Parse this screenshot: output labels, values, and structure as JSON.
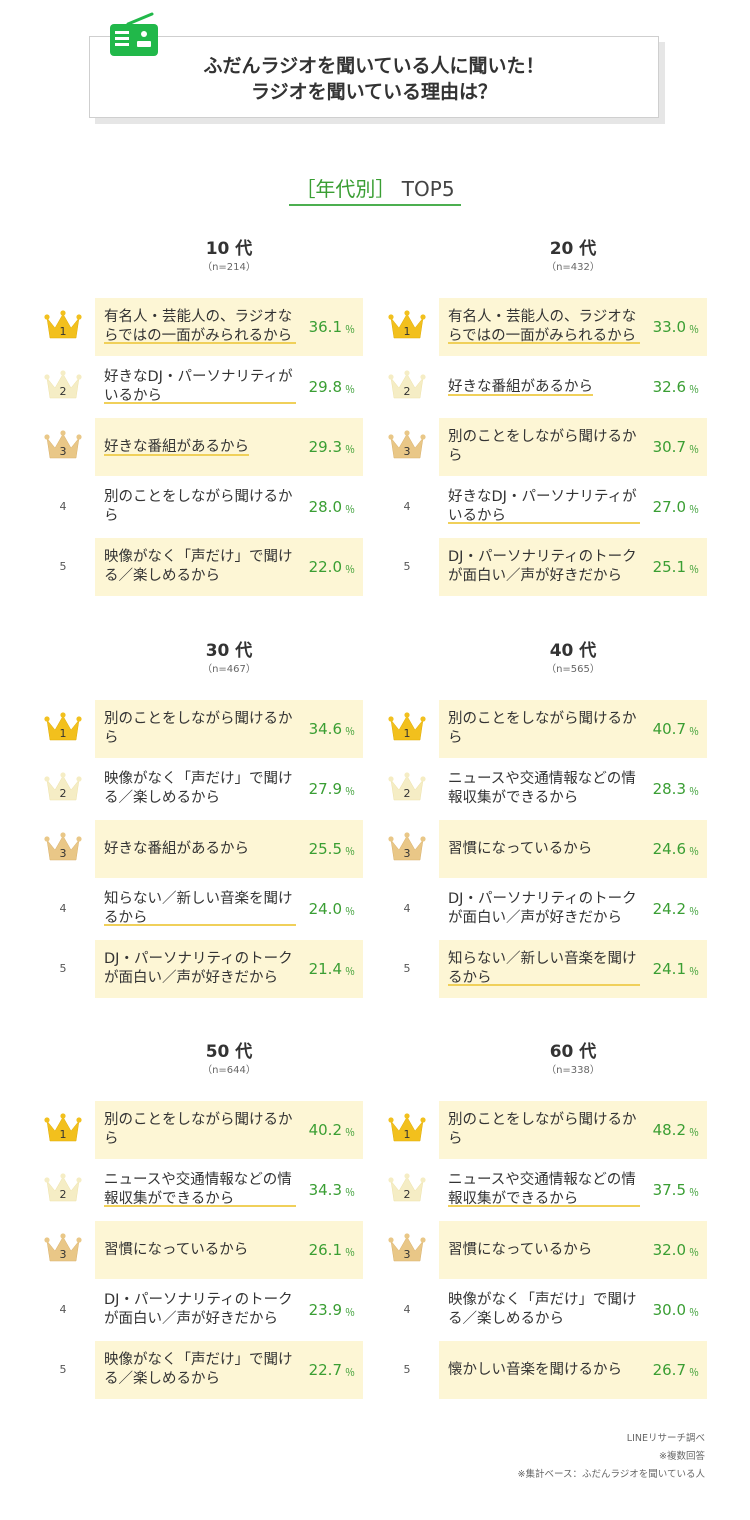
{
  "header": {
    "line1": "ふだんラジオを聞いている人に聞いた！",
    "line2": "ラジオを聞いている理由は？",
    "icon": "radio-icon",
    "accent": "#21b84a"
  },
  "subtitle": {
    "bracket_text": "［年代別］",
    "suffix": "TOP5"
  },
  "colors": {
    "highlight_bg": "#fdf6d5",
    "value": "#3a9e33",
    "underline": "#f0d05a",
    "gold": "#f2c01d",
    "silver": "#f5edc5",
    "bronze": "#e9c787"
  },
  "chart_data": {
    "type": "table",
    "unit": "％",
    "panels": [
      {
        "age": "10 代",
        "n": "（n=214）",
        "items": [
          {
            "rank": "1",
            "label": "有名人・芸能人の、ラジオならではの一面がみられるから",
            "value": 36.1,
            "value_text": "36.1",
            "underline": true
          },
          {
            "rank": "2",
            "label": "好きなDJ・パーソナリティがいるから",
            "value": 29.8,
            "value_text": "29.8",
            "underline": true
          },
          {
            "rank": "3",
            "label": "好きな番組があるから",
            "value": 29.3,
            "value_text": "29.3",
            "underline": true
          },
          {
            "rank": "4",
            "label": "別のことをしながら聞けるから",
            "value": 28.0,
            "value_text": "28.0",
            "underline": false
          },
          {
            "rank": "5",
            "label": "映像がなく「声だけ」で聞ける／楽しめるから",
            "value": 22.0,
            "value_text": "22.0",
            "underline": false
          }
        ]
      },
      {
        "age": "20 代",
        "n": "（n=432）",
        "items": [
          {
            "rank": "1",
            "label": "有名人・芸能人の、ラジオならではの一面がみられるから",
            "value": 33.0,
            "value_text": "33.0",
            "underline": true
          },
          {
            "rank": "2",
            "label": "好きな番組があるから",
            "value": 32.6,
            "value_text": "32.6",
            "underline": true
          },
          {
            "rank": "3",
            "label": "別のことをしながら聞けるから",
            "value": 30.7,
            "value_text": "30.7",
            "underline": false
          },
          {
            "rank": "4",
            "label": "好きなDJ・パーソナリティがいるから",
            "value": 27.0,
            "value_text": "27.0",
            "underline": true
          },
          {
            "rank": "5",
            "label": "DJ・パーソナリティのトークが面白い／声が好きだから",
            "value": 25.1,
            "value_text": "25.1",
            "underline": false
          }
        ]
      },
      {
        "age": "30 代",
        "n": "（n=467）",
        "items": [
          {
            "rank": "1",
            "label": "別のことをしながら聞けるから",
            "value": 34.6,
            "value_text": "34.6",
            "underline": false
          },
          {
            "rank": "2",
            "label": "映像がなく「声だけ」で聞ける／楽しめるから",
            "value": 27.9,
            "value_text": "27.9",
            "underline": false
          },
          {
            "rank": "3",
            "label": "好きな番組があるから",
            "value": 25.5,
            "value_text": "25.5",
            "underline": false
          },
          {
            "rank": "4",
            "label": "知らない／新しい音楽を聞けるから",
            "value": 24.0,
            "value_text": "24.0",
            "underline": true
          },
          {
            "rank": "5",
            "label": "DJ・パーソナリティのトークが面白い／声が好きだから",
            "value": 21.4,
            "value_text": "21.4",
            "underline": false
          }
        ]
      },
      {
        "age": "40 代",
        "n": "（n=565）",
        "items": [
          {
            "rank": "1",
            "label": "別のことをしながら聞けるから",
            "value": 40.7,
            "value_text": "40.7",
            "underline": false
          },
          {
            "rank": "2",
            "label": "ニュースや交通情報などの情報収集ができるから",
            "value": 28.3,
            "value_text": "28.3",
            "underline": false
          },
          {
            "rank": "3",
            "label": "習慣になっているから",
            "value": 24.6,
            "value_text": "24.6",
            "underline": false
          },
          {
            "rank": "4",
            "label": "DJ・パーソナリティのトークが面白い／声が好きだから",
            "value": 24.2,
            "value_text": "24.2",
            "underline": false
          },
          {
            "rank": "5",
            "label": "知らない／新しい音楽を聞けるから",
            "value": 24.1,
            "value_text": "24.1",
            "underline": true
          }
        ]
      },
      {
        "age": "50 代",
        "n": "（n=644）",
        "items": [
          {
            "rank": "1",
            "label": "別のことをしながら聞けるから",
            "value": 40.2,
            "value_text": "40.2",
            "underline": false
          },
          {
            "rank": "2",
            "label": "ニュースや交通情報などの情報収集ができるから",
            "value": 34.3,
            "value_text": "34.3",
            "underline": true
          },
          {
            "rank": "3",
            "label": "習慣になっているから",
            "value": 26.1,
            "value_text": "26.1",
            "underline": false
          },
          {
            "rank": "4",
            "label": "DJ・パーソナリティのトークが面白い／声が好きだから",
            "value": 23.9,
            "value_text": "23.9",
            "underline": false
          },
          {
            "rank": "5",
            "label": "映像がなく「声だけ」で聞ける／楽しめるから",
            "value": 22.7,
            "value_text": "22.7",
            "underline": false
          }
        ]
      },
      {
        "age": "60 代",
        "n": "（n=338）",
        "items": [
          {
            "rank": "1",
            "label": "別のことをしながら聞けるから",
            "value": 48.2,
            "value_text": "48.2",
            "underline": false
          },
          {
            "rank": "2",
            "label": "ニュースや交通情報などの情報収集ができるから",
            "value": 37.5,
            "value_text": "37.5",
            "underline": true
          },
          {
            "rank": "3",
            "label": "習慣になっているから",
            "value": 32.0,
            "value_text": "32.0",
            "underline": false
          },
          {
            "rank": "4",
            "label": "映像がなく「声だけ」で聞ける／楽しめるから",
            "value": 30.0,
            "value_text": "30.0",
            "underline": false
          },
          {
            "rank": "5",
            "label": "懐かしい音楽を聞けるから",
            "value": 26.7,
            "value_text": "26.7",
            "underline": false
          }
        ]
      }
    ]
  },
  "footer": {
    "source": "LINEリサーチ調べ",
    "note1": "※複数回答",
    "note2": "※集計ベース：ふだんラジオを聞いている人"
  }
}
